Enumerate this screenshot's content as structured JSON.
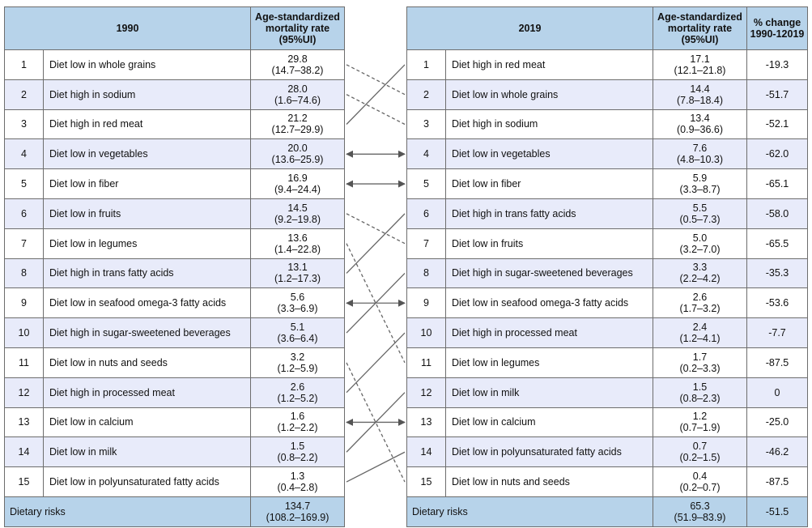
{
  "left_table": {
    "year": "1990",
    "rate_header_line1": "Age-standardized",
    "rate_header_line2": "mortality rate",
    "rate_header_line3": "(95%UI)",
    "rows": [
      {
        "rank": "1",
        "risk": "Diet low in whole grains",
        "rate": "29.8",
        "ui": "(14.7–38.2)"
      },
      {
        "rank": "2",
        "risk": "Diet high in sodium",
        "rate": "28.0",
        "ui": "(1.6–74.6)"
      },
      {
        "rank": "3",
        "risk": "Diet high in red meat",
        "rate": "21.2",
        "ui": "(12.7–29.9)"
      },
      {
        "rank": "4",
        "risk": "Diet low in vegetables",
        "rate": "20.0",
        "ui": "(13.6–25.9)"
      },
      {
        "rank": "5",
        "risk": "Diet low in fiber",
        "rate": "16.9",
        "ui": "(9.4–24.4)"
      },
      {
        "rank": "6",
        "risk": "Diet low in fruits",
        "rate": "14.5",
        "ui": "(9.2–19.8)"
      },
      {
        "rank": "7",
        "risk": "Diet low in legumes",
        "rate": "13.6",
        "ui": "(1.4–22.8)"
      },
      {
        "rank": "8",
        "risk": "Diet high in trans fatty acids",
        "rate": "13.1",
        "ui": "(1.2–17.3)"
      },
      {
        "rank": "9",
        "risk": "Diet low in seafood omega-3 fatty acids",
        "rate": "5.6",
        "ui": "(3.3–6.9)"
      },
      {
        "rank": "10",
        "risk": "Diet high in sugar-sweetened beverages",
        "rate": "5.1",
        "ui": "(3.6–6.4)"
      },
      {
        "rank": "11",
        "risk": "Diet low in nuts and seeds",
        "rate": "3.2",
        "ui": "(1.2–5.9)"
      },
      {
        "rank": "12",
        "risk": "Diet high in processed meat",
        "rate": "2.6",
        "ui": "(1.2–5.2)"
      },
      {
        "rank": "13",
        "risk": "Diet low in calcium",
        "rate": "1.6",
        "ui": "(1.2–2.2)"
      },
      {
        "rank": "14",
        "risk": "Diet low in milk",
        "rate": "1.5",
        "ui": "(0.8–2.2)"
      },
      {
        "rank": "15",
        "risk": "Diet low in polyunsaturated fatty acids",
        "rate": "1.3",
        "ui": "(0.4–2.8)"
      }
    ],
    "total": {
      "label": "Dietary risks",
      "rate": "134.7",
      "ui": "(108.2–169.9)"
    }
  },
  "right_table": {
    "year": "2019",
    "rate_header_line1": "Age-standardized",
    "rate_header_line2": "mortality rate",
    "rate_header_line3": "(95%UI)",
    "pct_header_line1": "% change",
    "pct_header_line2": "1990-12019",
    "rows": [
      {
        "rank": "1",
        "risk": "Diet high in red meat",
        "rate": "17.1",
        "ui": "(12.1–21.8)",
        "pct": "-19.3"
      },
      {
        "rank": "2",
        "risk": "Diet low in whole grains",
        "rate": "14.4",
        "ui": "(7.8–18.4)",
        "pct": "-51.7"
      },
      {
        "rank": "3",
        "risk": "Diet high in sodium",
        "rate": "13.4",
        "ui": "(0.9–36.6)",
        "pct": "-52.1"
      },
      {
        "rank": "4",
        "risk": "Diet low in vegetables",
        "rate": "7.6",
        "ui": "(4.8–10.3)",
        "pct": "-62.0"
      },
      {
        "rank": "5",
        "risk": "Diet low in fiber",
        "rate": "5.9",
        "ui": "(3.3–8.7)",
        "pct": "-65.1"
      },
      {
        "rank": "6",
        "risk": "Diet high in trans fatty acids",
        "rate": "5.5",
        "ui": "(0.5–7.3)",
        "pct": "-58.0"
      },
      {
        "rank": "7",
        "risk": "Diet low in fruits",
        "rate": "5.0",
        "ui": "(3.2–7.0)",
        "pct": "-65.5"
      },
      {
        "rank": "8",
        "risk": "Diet high in sugar-sweetened beverages",
        "rate": "3.3",
        "ui": "(2.2–4.2)",
        "pct": "-35.3"
      },
      {
        "rank": "9",
        "risk": "Diet low in seafood omega-3 fatty acids",
        "rate": "2.6",
        "ui": "(1.7–3.2)",
        "pct": "-53.6"
      },
      {
        "rank": "10",
        "risk": "Diet high in processed meat",
        "rate": "2.4",
        "ui": "(1.2–4.1)",
        "pct": "-7.7"
      },
      {
        "rank": "11",
        "risk": "Diet low in legumes",
        "rate": "1.7",
        "ui": "(0.2–3.3)",
        "pct": "-87.5"
      },
      {
        "rank": "12",
        "risk": "Diet low in milk",
        "rate": "1.5",
        "ui": "(0.8–2.3)",
        "pct": "0"
      },
      {
        "rank": "13",
        "risk": "Diet low in calcium",
        "rate": "1.2",
        "ui": "(0.7–1.9)",
        "pct": "-25.0"
      },
      {
        "rank": "14",
        "risk": "Diet low in polyunsaturated fatty acids",
        "rate": "0.7",
        "ui": "(0.2–1.5)",
        "pct": "-46.2"
      },
      {
        "rank": "15",
        "risk": "Diet low in nuts and seeds",
        "rate": "0.4",
        "ui": "(0.2–0.7)",
        "pct": "-87.5"
      }
    ],
    "total": {
      "label": "Dietary risks",
      "rate": "65.3",
      "ui": "(51.9–83.9)",
      "pct": "-51.5"
    }
  },
  "rank_links": [
    {
      "from": 1,
      "to": 2,
      "style": "dashed"
    },
    {
      "from": 2,
      "to": 3,
      "style": "dashed"
    },
    {
      "from": 3,
      "to": 1,
      "style": "solid"
    },
    {
      "from": 4,
      "to": 4,
      "style": "arrow"
    },
    {
      "from": 5,
      "to": 5,
      "style": "arrow"
    },
    {
      "from": 6,
      "to": 7,
      "style": "dashed"
    },
    {
      "from": 7,
      "to": 11,
      "style": "dashed"
    },
    {
      "from": 8,
      "to": 6,
      "style": "solid"
    },
    {
      "from": 9,
      "to": 9,
      "style": "arrow"
    },
    {
      "from": 10,
      "to": 8,
      "style": "solid"
    },
    {
      "from": 11,
      "to": 15,
      "style": "dashed"
    },
    {
      "from": 12,
      "to": 10,
      "style": "solid"
    },
    {
      "from": 13,
      "to": 13,
      "style": "arrow"
    },
    {
      "from": 14,
      "to": 12,
      "style": "solid"
    },
    {
      "from": 15,
      "to": 14,
      "style": "solid"
    }
  ],
  "colors": {
    "header": "#b7d3ea",
    "row_alt": "#e8ebfa",
    "line": "#6d6d6d"
  }
}
